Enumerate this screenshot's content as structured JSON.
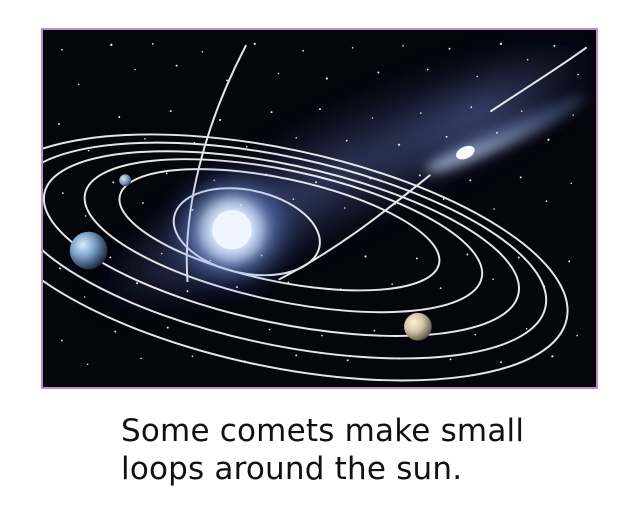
{
  "page": {
    "caption_lines": [
      "Some comets make small",
      "loops around the sun."
    ]
  },
  "illustration": {
    "frame_color": "#b88fc9",
    "background_color": "#05060d",
    "orbit_color": "#f2f2f2",
    "sun_color": "#ffffff",
    "comet_color": "#d8e6ff",
    "icons": [
      "sun-icon",
      "comet-icon",
      "planet-icon",
      "orbit-path-icon"
    ]
  }
}
